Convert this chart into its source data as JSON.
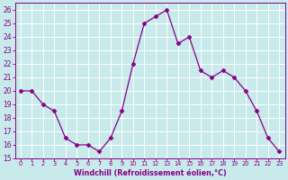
{
  "x": [
    0,
    1,
    2,
    3,
    4,
    5,
    6,
    7,
    8,
    9,
    10,
    11,
    12,
    13,
    14,
    15,
    16,
    17,
    18,
    19,
    20,
    21,
    22,
    23
  ],
  "y": [
    20.0,
    20.0,
    19.0,
    18.5,
    16.5,
    16.0,
    16.0,
    15.5,
    16.5,
    18.5,
    22.0,
    25.0,
    25.5,
    26.0,
    23.5,
    24.0,
    21.5,
    21.0,
    21.5,
    21.0,
    20.0,
    18.5,
    16.5,
    15.5
  ],
  "line_color": "#880088",
  "marker": "D",
  "marker_size": 2.5,
  "bg_color": "#c8eaea",
  "grid_color": "#ffffff",
  "xlabel": "Windchill (Refroidissement éolien,°C)",
  "xlabel_color": "#880088",
  "tick_color": "#880088",
  "ylim": [
    15,
    26.5
  ],
  "yticks": [
    15,
    16,
    17,
    18,
    19,
    20,
    21,
    22,
    23,
    24,
    25,
    26
  ],
  "xticks": [
    0,
    1,
    2,
    3,
    4,
    5,
    6,
    7,
    8,
    9,
    10,
    11,
    12,
    13,
    14,
    15,
    16,
    17,
    18,
    19,
    20,
    21,
    22,
    23
  ],
  "spine_color": "#880088"
}
